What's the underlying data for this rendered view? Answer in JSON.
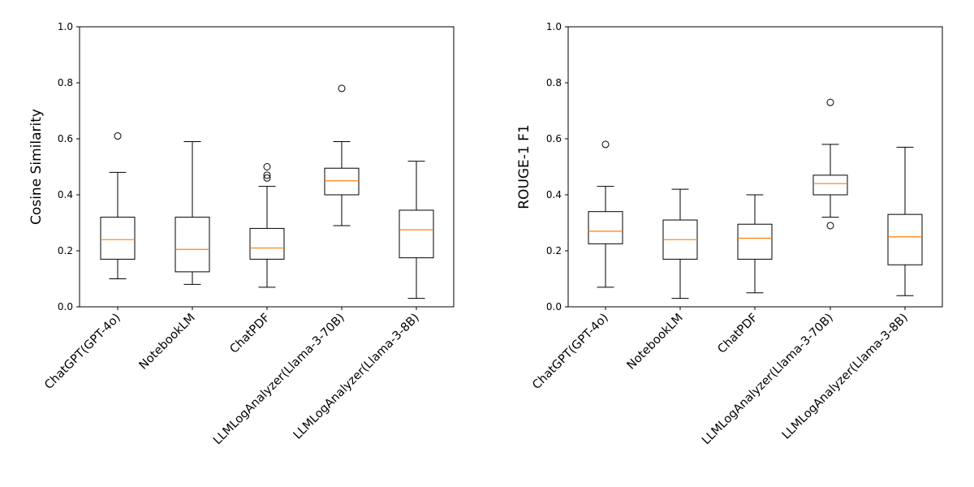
{
  "chart_data": [
    {
      "type": "boxplot",
      "ylabel": "Cosine Similarity",
      "ylim": [
        0,
        1.0
      ],
      "yticks": [
        "0.0",
        "0.2",
        "0.4",
        "0.6",
        "0.8",
        "1.0"
      ],
      "categories": [
        "ChatGPT(GPT-4o)",
        "NotebookLM",
        "ChatPDF",
        "LLMLogAnalyzer(Llama-3-70B)",
        "LLMLogAnalyzer(Llama-3-8B)"
      ],
      "boxes": [
        {
          "whislo": 0.1,
          "q1": 0.17,
          "med": 0.24,
          "q3": 0.32,
          "whishi": 0.48,
          "fliers": [
            0.61
          ]
        },
        {
          "whislo": 0.08,
          "q1": 0.125,
          "med": 0.205,
          "q3": 0.32,
          "whishi": 0.59,
          "fliers": []
        },
        {
          "whislo": 0.07,
          "q1": 0.17,
          "med": 0.21,
          "q3": 0.28,
          "whishi": 0.43,
          "fliers": [
            0.46,
            0.47,
            0.5
          ]
        },
        {
          "whislo": 0.29,
          "q1": 0.4,
          "med": 0.45,
          "q3": 0.495,
          "whishi": 0.59,
          "fliers": [
            0.78
          ]
        },
        {
          "whislo": 0.03,
          "q1": 0.175,
          "med": 0.275,
          "q3": 0.345,
          "whishi": 0.52,
          "fliers": []
        }
      ]
    },
    {
      "type": "boxplot",
      "ylabel": "ROUGE-1 F1",
      "ylim": [
        0,
        1.0
      ],
      "yticks": [
        "0.0",
        "0.2",
        "0.4",
        "0.6",
        "0.8",
        "1.0"
      ],
      "categories": [
        "ChatGPT(GPT-4o)",
        "NotebookLM",
        "ChatPDF",
        "LLMLogAnalyzer(Llama-3-70B)",
        "LLMLogAnalyzer(Llama-3-8B)"
      ],
      "boxes": [
        {
          "whislo": 0.07,
          "q1": 0.225,
          "med": 0.27,
          "q3": 0.34,
          "whishi": 0.43,
          "fliers": [
            0.58
          ]
        },
        {
          "whislo": 0.03,
          "q1": 0.17,
          "med": 0.24,
          "q3": 0.31,
          "whishi": 0.42,
          "fliers": []
        },
        {
          "whislo": 0.05,
          "q1": 0.17,
          "med": 0.245,
          "q3": 0.295,
          "whishi": 0.4,
          "fliers": []
        },
        {
          "whislo": 0.32,
          "q1": 0.4,
          "med": 0.44,
          "q3": 0.47,
          "whishi": 0.58,
          "fliers": [
            0.29,
            0.73
          ]
        },
        {
          "whislo": 0.04,
          "q1": 0.15,
          "med": 0.25,
          "q3": 0.33,
          "whishi": 0.57,
          "fliers": []
        }
      ]
    }
  ],
  "colors": {
    "median": "#ff7f0e",
    "box": "#000000",
    "background": "#ffffff"
  }
}
